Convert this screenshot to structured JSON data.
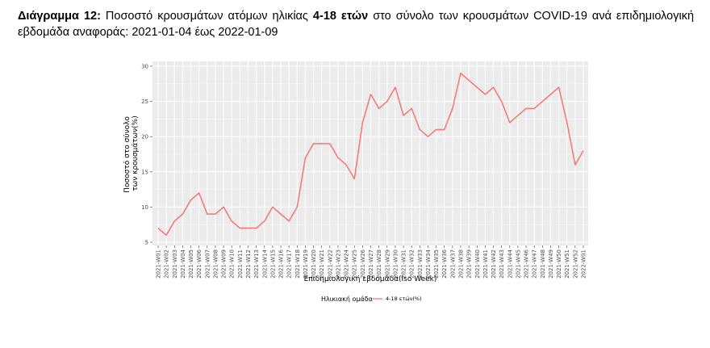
{
  "caption": {
    "lead": "Διάγραμμα 12:",
    "part1": " Ποσοστό κρουσμάτων ατόμων ηλικίας ",
    "bold_age": "4-18 ετών",
    "part2": " στο σύνολο των κρουσμάτων COVID-19 ανά επιδημιολογική εβδομάδα αναφοράς: 2021-01-04 έως 2022-01-09"
  },
  "chart_data": {
    "type": "line",
    "title": "",
    "xlabel": "Επιδημιολογική εβδομάδα(Iso Week)",
    "ylabel_lines": [
      "Ποσοστό στο σύνολο",
      "των κρουσμάτων(%)"
    ],
    "ylim": [
      5,
      30
    ],
    "yticks": [
      5,
      10,
      15,
      20,
      25,
      30
    ],
    "grid": true,
    "legend": {
      "title": "Ηλικιακή ομάδα",
      "position": "bottom"
    },
    "categories": [
      "2021-W01",
      "2021-W02",
      "2021-W03",
      "2021-W04",
      "2021-W05",
      "2021-W06",
      "2021-W07",
      "2021-W08",
      "2021-W09",
      "2021-W10",
      "2021-W11",
      "2021-W12",
      "2021-W13",
      "2021-W14",
      "2021-W15",
      "2021-W16",
      "2021-W17",
      "2021-W18",
      "2021-W19",
      "2021-W20",
      "2021-W21",
      "2021-W22",
      "2021-W23",
      "2021-W24",
      "2021-W25",
      "2021-W26",
      "2021-W27",
      "2021-W28",
      "2021-W29",
      "2021-W30",
      "2021-W31",
      "2021-W32",
      "2021-W33",
      "2021-W34",
      "2021-W35",
      "2021-W36",
      "2021-W37",
      "2021-W38",
      "2021-W39",
      "2021-W40",
      "2021-W41",
      "2021-W42",
      "2021-W43",
      "2021-W44",
      "2021-W45",
      "2021-W46",
      "2021-W47",
      "2021-W48",
      "2021-W49",
      "2021-W50",
      "2021-W51",
      "2021-W52",
      "2022-W01"
    ],
    "series": [
      {
        "name": "4-18 ετών(%)",
        "color": "#f8766d",
        "values": [
          7,
          6,
          8,
          9,
          11,
          12,
          9,
          9,
          10,
          8,
          7,
          7,
          7,
          8,
          10,
          9,
          8,
          10,
          17,
          19,
          19,
          19,
          17,
          16,
          14,
          22,
          26,
          24,
          25,
          27,
          23,
          24,
          21,
          20,
          21,
          21,
          24,
          29,
          28,
          27,
          26,
          27,
          25,
          22,
          23,
          24,
          24,
          25,
          26,
          27,
          22,
          16,
          18
        ]
      }
    ]
  }
}
